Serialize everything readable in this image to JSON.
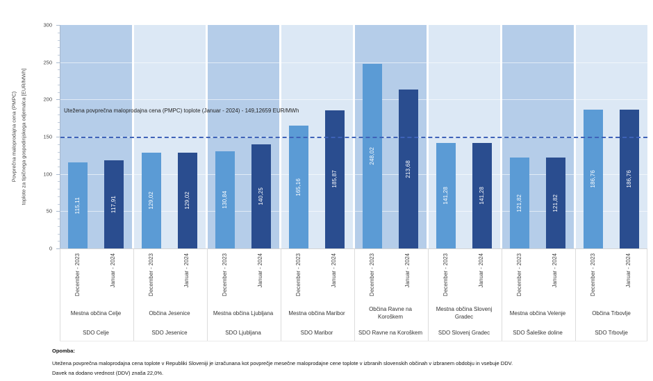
{
  "chart_data": {
    "type": "bar",
    "title": "",
    "ylabel_line1": "Povprečna maloprodajna cena (PMPC)",
    "ylabel_line2": "toplote za tipičnega gospodinjskega odjemalca  [EUR/MWh]",
    "ylim": [
      0,
      300
    ],
    "yticks": [
      0,
      50,
      100,
      150,
      200,
      250,
      300
    ],
    "minor_tick_step": 10,
    "grid": true,
    "legend_position": "none",
    "panel_colors": {
      "odd": "#b5cde9",
      "even": "#dce8f5"
    },
    "series": [
      {
        "name": "December - 2023",
        "color": "#5b9bd5",
        "values": [
          115.11,
          129.02,
          130.84,
          165.16,
          248.02,
          141.28,
          121.82,
          186.76
        ],
        "labels": [
          "115,11",
          "129,02",
          "130,84",
          "165,16",
          "248,02",
          "141,28",
          "121,82",
          "186,76"
        ]
      },
      {
        "name": "Januar - 2024",
        "color": "#2a4d8f",
        "values": [
          117.91,
          129.02,
          140.25,
          185.87,
          213.68,
          141.28,
          121.82,
          186.76
        ],
        "labels": [
          "117,91",
          "129,02",
          "140,25",
          "185,87",
          "213,68",
          "141,28",
          "121,82",
          "186,76"
        ]
      }
    ],
    "groups": [
      {
        "municipality": "Mestna občina Celje",
        "district": "SDO Celje"
      },
      {
        "municipality": "Občina Jesenice",
        "district": "SDO Jesenice"
      },
      {
        "municipality": "Mestna občina Ljubljana",
        "district": "SDO Ljubljana"
      },
      {
        "municipality": "Mestna občina Maribor",
        "district": "SDO Maribor"
      },
      {
        "municipality": "Občina Ravne na Koroškem",
        "municipality_lines": [
          "Občina Ravne na",
          "Koroškem"
        ],
        "district": "SDO Ravne na Koroškem"
      },
      {
        "municipality": "Mestna občina Slovenj Gradec",
        "municipality_lines": [
          "Mestna občina Slovenj",
          "Gradec"
        ],
        "district": "SDO Slovenj Gradec"
      },
      {
        "municipality": "Mestna občina Velenje",
        "district": "SDO Šaleške doline"
      },
      {
        "municipality": "Občina Trbovlje",
        "district": "SDO Trbovlje"
      }
    ],
    "reference_line": {
      "value": 149.12659,
      "color": "#3e62b8",
      "label": "Utežena povprečna maloprodajna cena (PMPC) toplote (Januar - 2024) - 149,12659  EUR/MWh"
    }
  },
  "footnote": {
    "title": "Opomba:",
    "line1": "Utežena povprečna maloprodajna cena toplote v Republiki Sloveniji je izračunana kot povprečje mesečne maloprodajne cene toplote v izbranih slovenskih občinah v izbranem obdobju in vsebuje DDV.",
    "line2": "Davek na dodano vrednost (DDV) znaša 22,0%."
  }
}
